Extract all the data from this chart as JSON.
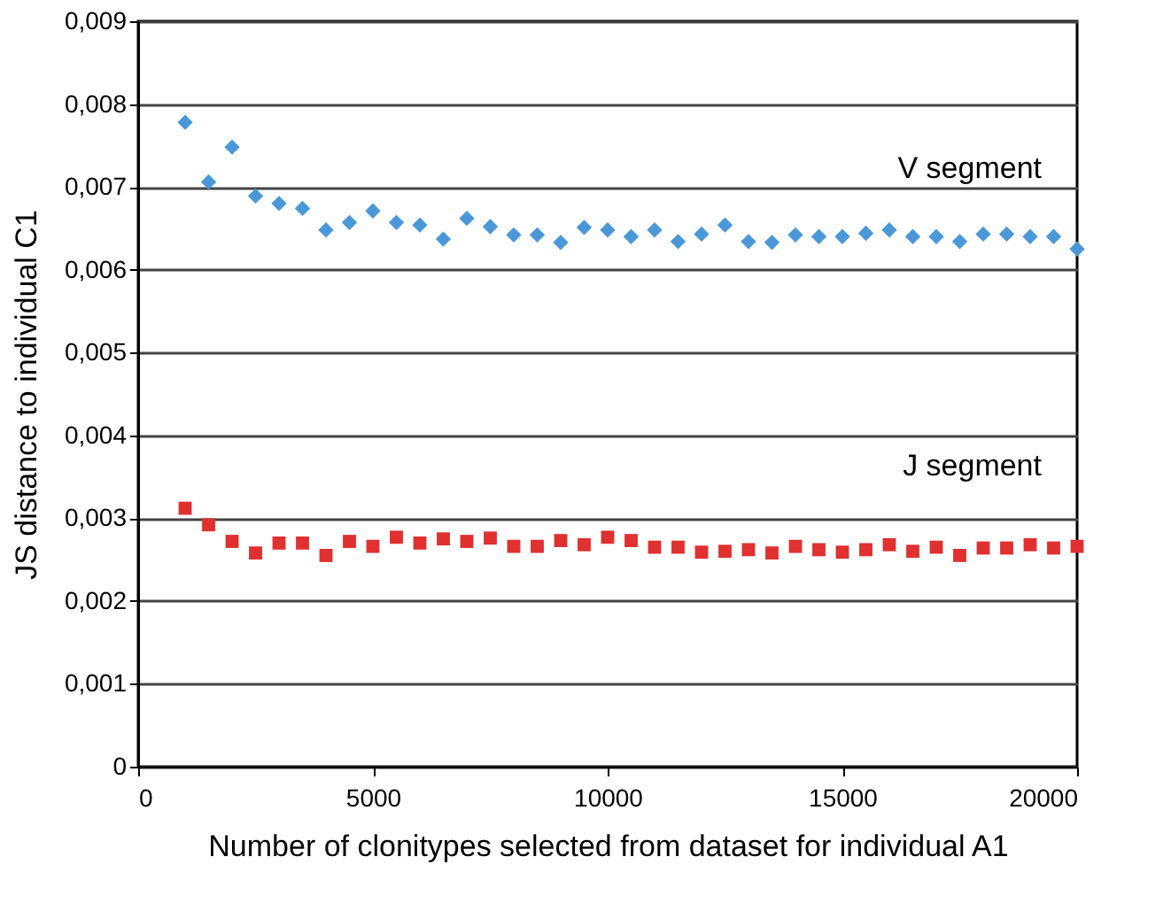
{
  "chart_data": {
    "type": "scatter",
    "xlabel": "Number of clonitypes selected from dataset for individual A1",
    "ylabel": "JS distance to individual C1",
    "x": [
      1000,
      1500,
      2000,
      2500,
      3000,
      3500,
      4000,
      4500,
      5000,
      5500,
      6000,
      6500,
      7000,
      7500,
      8000,
      8500,
      9000,
      9500,
      10000,
      10500,
      11000,
      11500,
      12000,
      12500,
      13000,
      13500,
      14000,
      14500,
      15000,
      15500,
      16000,
      16500,
      17000,
      17500,
      18000,
      18500,
      19000,
      19500,
      20000
    ],
    "series": [
      {
        "name": "V segment",
        "color": "#4a98d8",
        "marker": "diamond",
        "values": [
          0.00778,
          0.00706,
          0.00748,
          0.00689,
          0.0068,
          0.00674,
          0.00648,
          0.00657,
          0.00671,
          0.00657,
          0.00654,
          0.00637,
          0.00662,
          0.00652,
          0.00642,
          0.00642,
          0.00633,
          0.00651,
          0.00648,
          0.0064,
          0.00648,
          0.00634,
          0.00643,
          0.00654,
          0.00634,
          0.00633,
          0.00642,
          0.0064,
          0.0064,
          0.00644,
          0.00648,
          0.0064,
          0.0064,
          0.00634,
          0.00643,
          0.00643,
          0.0064,
          0.0064,
          0.00625
        ]
      },
      {
        "name": "J segment",
        "color": "#e03030",
        "marker": "square",
        "values": [
          0.00312,
          0.00292,
          0.00272,
          0.00258,
          0.0027,
          0.0027,
          0.00255,
          0.00272,
          0.00266,
          0.00277,
          0.0027,
          0.00275,
          0.00272,
          0.00276,
          0.00266,
          0.00266,
          0.00273,
          0.00268,
          0.00277,
          0.00273,
          0.00265,
          0.00265,
          0.00259,
          0.0026,
          0.00262,
          0.00258,
          0.00266,
          0.00262,
          0.00259,
          0.00262,
          0.00268,
          0.0026,
          0.00265,
          0.00255,
          0.00264,
          0.00264,
          0.00268,
          0.00264,
          0.00266
        ]
      }
    ],
    "xlim": [
      0,
      20000
    ],
    "xticks": [
      0,
      5000,
      10000,
      15000,
      20000
    ],
    "ylim": [
      0,
      0.009
    ],
    "yticks": [
      {
        "value": 0,
        "label": "0"
      },
      {
        "value": 0.001,
        "label": "0,001"
      },
      {
        "value": 0.002,
        "label": "0,002"
      },
      {
        "value": 0.003,
        "label": "0,003"
      },
      {
        "value": 0.004,
        "label": "0,004"
      },
      {
        "value": 0.005,
        "label": "0,005"
      },
      {
        "value": 0.006,
        "label": "0,006"
      },
      {
        "value": 0.007,
        "label": "0,007"
      },
      {
        "value": 0.008,
        "label": "0,008"
      },
      {
        "value": 0.009,
        "label": "0,009"
      }
    ],
    "grid": "y"
  }
}
